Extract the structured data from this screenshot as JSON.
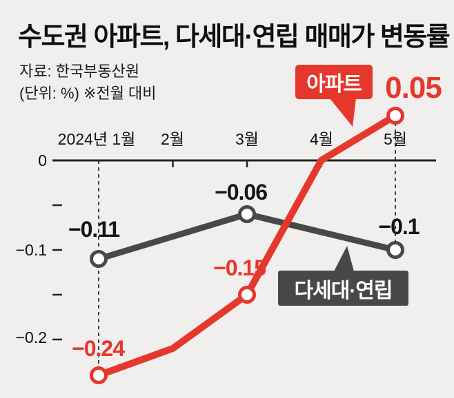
{
  "header": {
    "title": "수도권 아파트, 다세대·연립 매매가 변동률",
    "source": "자료: 한국부동산원",
    "unit_note": "(단위: %) ※전월 대비"
  },
  "colors": {
    "background": "#f0efed",
    "apartment_red": "#e6372c",
    "villa_dark": "#484846",
    "axis": "#222222"
  },
  "callouts": {
    "apartment": "아파트",
    "villa": "다세대·연립"
  },
  "chart_data": {
    "type": "line",
    "title": "수도권 아파트, 다세대·연립 매매가 변동률",
    "source": "자료: 한국부동산원",
    "unit_note": "(단위: %) ※전월 대비",
    "categories": [
      "2024년 1월",
      "2월",
      "3월",
      "4월",
      "5월"
    ],
    "y_axis": {
      "ticks": [
        {
          "value": 0,
          "label": "0"
        },
        {
          "value": -0.1,
          "label": "−0.1"
        },
        {
          "value": -0.2,
          "label": "−0.2"
        }
      ],
      "minor_ticks": [
        -0.05,
        -0.15
      ],
      "range": [
        -0.27,
        0.08
      ]
    },
    "grid": false,
    "legend_position": "callout-labels-on-chart",
    "series": [
      {
        "name": "아파트",
        "color": "#e6372c",
        "values": [
          -0.24,
          -0.21,
          -0.15,
          0.0,
          0.05
        ],
        "point_labels": [
          "−0.24",
          null,
          "−0.15",
          null,
          "0.05"
        ]
      },
      {
        "name": "다세대·연립",
        "color": "#484846",
        "values": [
          -0.11,
          -0.085,
          -0.06,
          -0.08,
          -0.1
        ],
        "point_labels": [
          "−0.11",
          null,
          "−0.06",
          null,
          "−0.1"
        ]
      }
    ]
  }
}
